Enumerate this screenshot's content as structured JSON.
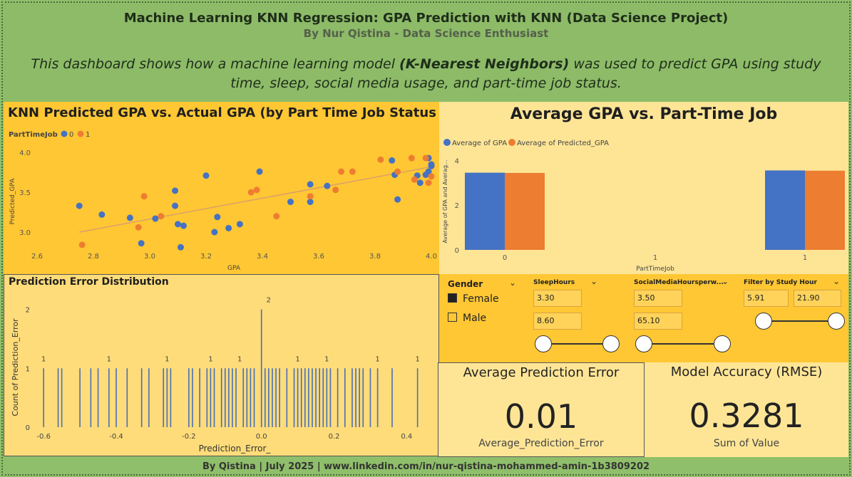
{
  "header": {
    "title": "Machine Learning KNN Regression: GPA Prediction with KNN (Data Science Project)",
    "subtitle": "By Nur Qistina - Data Science Enthusiast",
    "description_pre": "This dashboard shows how a machine learning model ",
    "description_bold": "(K-Nearest Neighbors)",
    "description_post": " was used to predict GPA using study time, sleep, social media usage, and part-time job status."
  },
  "scatter": {
    "title": "KNN Predicted GPA vs. Actual GPA (by Part Time Job Status",
    "legend_title": "PartTimeJob",
    "legend_items": [
      {
        "label": "0",
        "color": "#4472c4"
      },
      {
        "label": "1",
        "color": "#ed7d31"
      }
    ],
    "xlabel": "GPA",
    "ylabel": "Predicted_GPA",
    "x_ticks": [
      "2.6",
      "2.8",
      "3.0",
      "3.2",
      "3.4",
      "3.6",
      "3.8",
      "4.0"
    ],
    "y_ticks": [
      "3.0",
      "3.5",
      "4.0"
    ]
  },
  "bar": {
    "title": "Average GPA vs. Part-Time Job",
    "legend_items": [
      {
        "label": "Average of GPA",
        "color": "#4472c4"
      },
      {
        "label": "Average of Predicted_GPA",
        "color": "#ed7d31"
      }
    ],
    "ylabel": "Average of GPA and Averag...",
    "xlabel": "PartTimeJob",
    "y_ticks": [
      "0",
      "2",
      "4"
    ],
    "x_ticks": [
      "0",
      "1",
      "1"
    ]
  },
  "error": {
    "title": "Prediction Error Distribution",
    "xlabel": "Prediction_Error_",
    "ylabel": "Count of Prediction_Error",
    "x_ticks": [
      "-0.6",
      "-0.4",
      "-0.2",
      "0.0",
      "0.2",
      "0.4"
    ],
    "y_ticks": [
      "0",
      "1",
      "2"
    ],
    "data_labels": [
      "1",
      "1",
      "1",
      "1",
      "1",
      "2",
      "1",
      "1",
      "1",
      "1"
    ]
  },
  "filters": {
    "gender": {
      "title": "Gender",
      "options": [
        {
          "label": "Female",
          "checked": true
        },
        {
          "label": "Male",
          "checked": false
        }
      ]
    },
    "sleep": {
      "title": "SleepHours",
      "min": "3.30",
      "max": "8.60"
    },
    "social": {
      "title": "SocialMediaHoursperw...",
      "min": "3.50",
      "max": "65.10"
    },
    "study": {
      "title": "Filter by Study Hour",
      "min": "5.91",
      "max": "21.90"
    }
  },
  "cards": {
    "avg_error": {
      "title": "Average Prediction Error",
      "value": "0.01",
      "label": "Average_Prediction_Error"
    },
    "rmse": {
      "title": "Model Accuracy (RMSE)",
      "value": "0.3281",
      "label": "Sum of Value"
    }
  },
  "footer": "By Qistina | July 2025 | www.linkedin.com/in/nur-qistina-mohammed-amin-1b3809202",
  "chart_data": [
    {
      "type": "scatter",
      "title": "KNN Predicted GPA vs. Actual GPA (by Part Time Job Status",
      "xlabel": "GPA",
      "ylabel": "Predicted_GPA",
      "xlim": [
        2.6,
        4.0
      ],
      "ylim": [
        2.75,
        4.1
      ],
      "series": [
        {
          "name": "0",
          "color": "#4472c4",
          "points": [
            [
              2.75,
              3.33
            ],
            [
              2.83,
              3.22
            ],
            [
              2.93,
              3.18
            ],
            [
              2.97,
              2.86
            ],
            [
              3.02,
              3.17
            ],
            [
              3.09,
              3.33
            ],
            [
              3.09,
              3.52
            ],
            [
              3.1,
              3.1
            ],
            [
              3.11,
              2.81
            ],
            [
              3.12,
              3.08
            ],
            [
              3.2,
              3.71
            ],
            [
              3.23,
              3.0
            ],
            [
              3.24,
              3.19
            ],
            [
              3.28,
              3.05
            ],
            [
              3.32,
              3.1
            ],
            [
              3.39,
              3.76
            ],
            [
              3.5,
              3.38
            ],
            [
              3.57,
              3.6
            ],
            [
              3.57,
              3.38
            ],
            [
              3.63,
              3.58
            ],
            [
              3.86,
              3.9
            ],
            [
              3.87,
              3.72
            ],
            [
              3.88,
              3.41
            ],
            [
              3.95,
              3.71
            ],
            [
              3.96,
              3.62
            ],
            [
              3.98,
              3.72
            ],
            [
              3.99,
              3.93
            ],
            [
              3.99,
              3.76
            ],
            [
              4.0,
              3.83
            ],
            [
              4.0,
              3.85
            ]
          ]
        },
        {
          "name": "1",
          "color": "#ed7d31",
          "points": [
            [
              2.76,
              2.84
            ],
            [
              2.96,
              3.06
            ],
            [
              2.98,
              3.45
            ],
            [
              3.04,
              3.2
            ],
            [
              3.36,
              3.5
            ],
            [
              3.38,
              3.53
            ],
            [
              3.45,
              3.2
            ],
            [
              3.57,
              3.45
            ],
            [
              3.66,
              3.53
            ],
            [
              3.68,
              3.76
            ],
            [
              3.72,
              3.76
            ],
            [
              3.82,
              3.91
            ],
            [
              3.88,
              3.76
            ],
            [
              3.93,
              3.93
            ],
            [
              3.94,
              3.66
            ],
            [
              3.98,
              3.93
            ],
            [
              3.99,
              3.62
            ],
            [
              4.0,
              3.7
            ]
          ]
        }
      ],
      "trendline": [
        [
          2.75,
          3.0
        ],
        [
          4.0,
          3.82
        ]
      ]
    },
    {
      "type": "bar",
      "title": "Average GPA vs. Part-Time Job",
      "categories": [
        "0",
        "1"
      ],
      "series": [
        {
          "name": "Average of GPA",
          "color": "#4472c4",
          "values": [
            3.45,
            3.55
          ]
        },
        {
          "name": "Average of Predicted_GPA",
          "color": "#ed7d31",
          "values": [
            3.44,
            3.54
          ]
        }
      ],
      "xlabel": "PartTimeJob",
      "ylabel": "Average of GPA and Averag...",
      "ylim": [
        0,
        4.2
      ],
      "xlim": [
        0,
        1
      ]
    },
    {
      "type": "bar",
      "title": "Prediction Error Distribution",
      "xlabel": "Prediction_Error_",
      "ylabel": "Count of Prediction_Error",
      "xlim": [
        -0.62,
        0.47
      ],
      "ylim": [
        0,
        2.2
      ],
      "x": [
        -0.6,
        -0.56,
        -0.55,
        -0.5,
        -0.47,
        -0.45,
        -0.42,
        -0.4,
        -0.37,
        -0.33,
        -0.31,
        -0.27,
        -0.26,
        -0.25,
        -0.2,
        -0.19,
        -0.17,
        -0.15,
        -0.14,
        -0.13,
        -0.11,
        -0.1,
        -0.09,
        -0.08,
        -0.07,
        -0.05,
        -0.04,
        -0.03,
        -0.02,
        0.0,
        0.01,
        0.02,
        0.03,
        0.04,
        0.05,
        0.07,
        0.09,
        0.1,
        0.11,
        0.12,
        0.13,
        0.14,
        0.15,
        0.16,
        0.17,
        0.18,
        0.19,
        0.21,
        0.23,
        0.25,
        0.26,
        0.27,
        0.28,
        0.3,
        0.32,
        0.36,
        0.43
      ],
      "values": [
        1,
        1,
        1,
        1,
        1,
        1,
        1,
        1,
        1,
        1,
        1,
        1,
        1,
        1,
        1,
        1,
        1,
        1,
        1,
        1,
        1,
        1,
        1,
        1,
        1,
        1,
        1,
        1,
        1,
        2,
        1,
        1,
        1,
        1,
        1,
        1,
        1,
        1,
        1,
        1,
        1,
        1,
        1,
        1,
        1,
        1,
        1,
        1,
        1,
        1,
        1,
        1,
        1,
        1,
        1,
        1,
        1
      ]
    }
  ]
}
